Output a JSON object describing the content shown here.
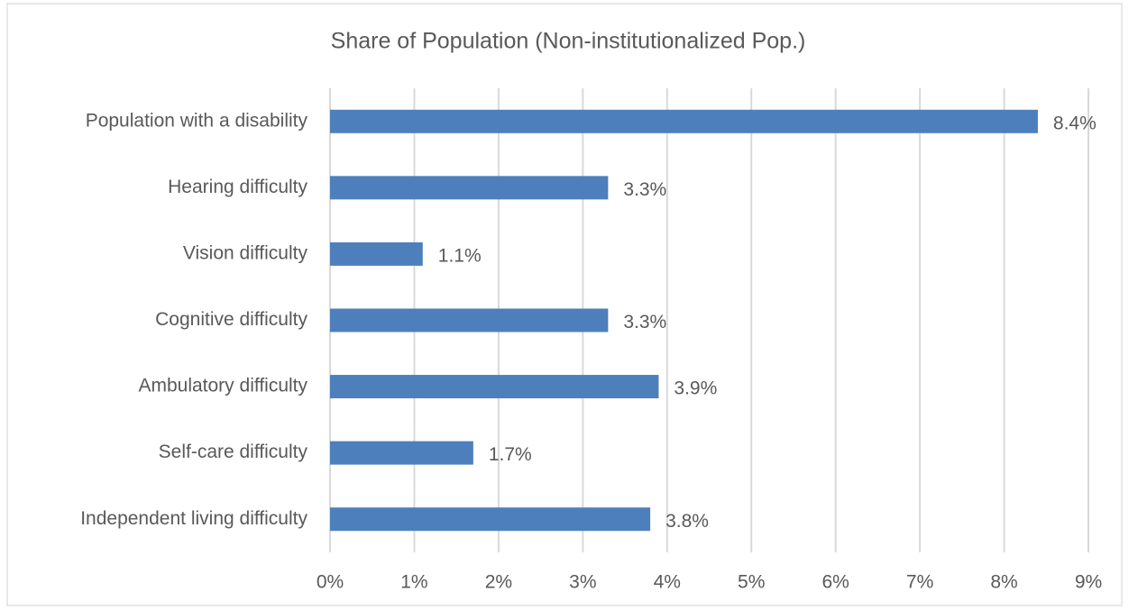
{
  "chart_data": {
    "type": "barh",
    "title": "Share of Population (Non-institutionalized Pop.)",
    "categories": [
      "Population with a disability",
      "Hearing difficulty",
      "Vision difficulty",
      "Cognitive difficulty",
      "Ambulatory difficulty",
      "Self-care difficulty",
      "Independent living difficulty"
    ],
    "values": [
      8.4,
      3.3,
      1.1,
      3.3,
      3.9,
      1.7,
      3.8
    ],
    "value_labels": [
      "8.4%",
      "3.3%",
      "1.1%",
      "3.3%",
      "3.9%",
      "1.7%",
      "3.8%"
    ],
    "color": "#4e7fbd",
    "xlim": [
      0,
      9
    ],
    "xticks": [
      {
        "value": 0,
        "label": "0%"
      },
      {
        "value": 1,
        "label": "1%"
      },
      {
        "value": 2,
        "label": "2%"
      },
      {
        "value": 3,
        "label": "3%"
      },
      {
        "value": 4,
        "label": "4%"
      },
      {
        "value": 5,
        "label": "5%"
      },
      {
        "value": 6,
        "label": "6%"
      },
      {
        "value": 7,
        "label": "7%"
      },
      {
        "value": 8,
        "label": "8%"
      },
      {
        "value": 9,
        "label": "9%"
      }
    ],
    "grid": true
  }
}
